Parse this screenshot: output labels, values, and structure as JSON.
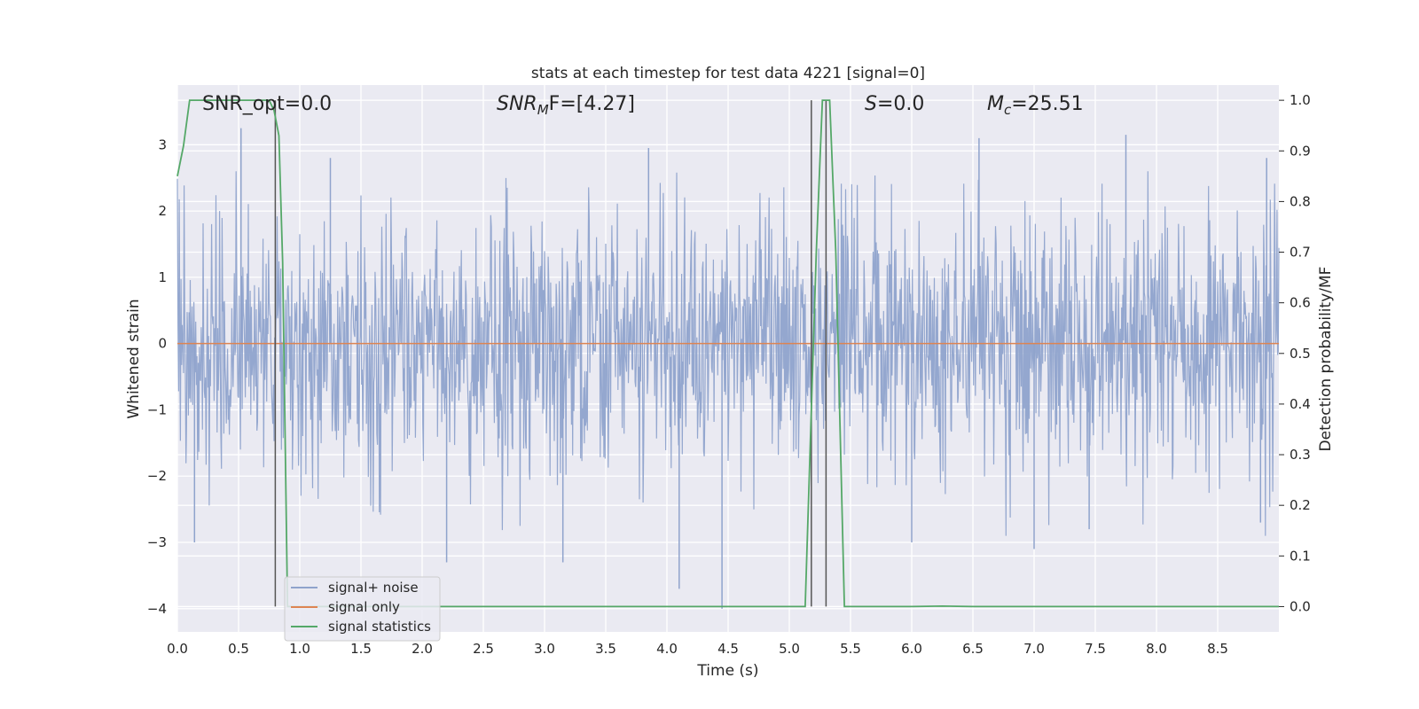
{
  "chart_data": {
    "type": "line",
    "title": "stats at each timestep for test data 4221 [signal=0]",
    "xlabel": "Time (s)",
    "ylabel": "Whitened strain",
    "ylabel_right": "Detection probability/MF",
    "xlim": [
      0.0,
      9.0
    ],
    "ylim": [
      -4.35,
      3.9
    ],
    "ylim_right": [
      -0.05,
      1.03
    ],
    "xticks": [
      "0.0",
      "0.5",
      "1.0",
      "1.5",
      "2.0",
      "2.5",
      "3.0",
      "3.5",
      "4.0",
      "4.5",
      "5.0",
      "5.5",
      "6.0",
      "6.5",
      "7.0",
      "7.5",
      "8.0",
      "8.5"
    ],
    "yticks": [
      "3",
      "2",
      "1",
      "0",
      "−1",
      "−2",
      "−3",
      "−4"
    ],
    "yticks_right": [
      "1.0",
      "0.9",
      "0.8",
      "0.7",
      "0.6",
      "0.5",
      "0.4",
      "0.3",
      "0.2",
      "0.1",
      "0.0"
    ],
    "grid": true,
    "legend_position": "lower-left",
    "annotations": {
      "snr_opt": "SNR_opt=0.0",
      "snr_mf_base": "SNR",
      "snr_mf_sub": "M",
      "snr_mf_rest": "F=[4.27]",
      "s_var": "S",
      "s_rest": "=0.0",
      "mc_base": "M",
      "mc_sub": "c",
      "mc_rest": "=25.51"
    },
    "series": [
      {
        "name": "signal+ noise",
        "color": "#8fa3cc",
        "description_values": "whitened noise, approximately uniform amplitude within about ±1.3 with spikes up to 3.3 and down to -4.0",
        "spike_peaks": [
          [
            0.52,
            3.25
          ],
          [
            1.25,
            2.8
          ],
          [
            3.85,
            2.95
          ],
          [
            6.55,
            3.1
          ],
          [
            7.75,
            3.15
          ],
          [
            8.9,
            2.8
          ]
        ],
        "spike_troughs": [
          [
            0.14,
            -3.0
          ],
          [
            2.2,
            -3.3
          ],
          [
            3.15,
            -3.3
          ],
          [
            4.1,
            -3.7
          ],
          [
            4.45,
            -4.0
          ],
          [
            6.0,
            -3.0
          ],
          [
            7.0,
            -3.1
          ],
          [
            7.45,
            -2.8
          ],
          [
            8.85,
            -2.7
          ]
        ]
      },
      {
        "name": "signal only",
        "color": "#dd8452",
        "x": [
          0.0,
          9.0
        ],
        "y": [
          0.0,
          0.0
        ]
      },
      {
        "name": "signal statistics",
        "color": "#55a868",
        "axis": "right",
        "x": [
          0.0,
          0.05,
          0.1,
          0.2,
          0.3,
          0.45,
          0.6,
          0.75,
          0.79,
          0.83,
          0.86,
          0.9,
          1.0,
          2.0,
          3.0,
          4.0,
          5.0,
          5.13,
          5.22,
          5.27,
          5.3,
          5.33,
          5.38,
          5.45,
          5.5,
          6.0,
          6.25,
          6.5,
          7.0,
          8.0,
          9.0
        ],
        "y": [
          0.85,
          0.91,
          1.0,
          1.0,
          1.0,
          1.0,
          1.0,
          1.0,
          0.98,
          0.93,
          0.68,
          0.0,
          0.0,
          0.0,
          0.0,
          0.0,
          0.0,
          0.0,
          0.7,
          1.0,
          1.0,
          1.0,
          0.7,
          0.0,
          0.0,
          0.0,
          0.001,
          0.0,
          0.0,
          0.0,
          0.0
        ]
      }
    ],
    "vertical_markers": [
      0.8,
      5.18,
      5.3
    ]
  }
}
